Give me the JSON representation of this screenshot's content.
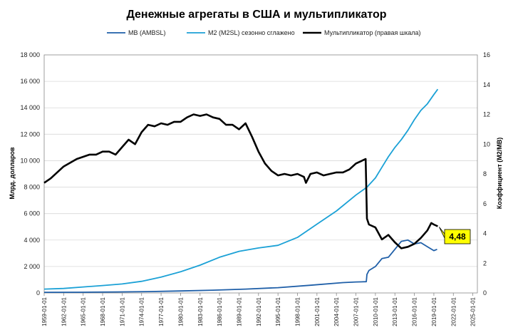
{
  "chart_data": {
    "type": "line",
    "title": "Денежные агрегаты в США и мультипликатор",
    "ylabel": "Млрд. долларов",
    "y2label": "Коэффициент (M2/MB)",
    "ylim": [
      0,
      18000
    ],
    "y2lim": [
      0,
      16
    ],
    "yticks": [
      "0",
      "2 000",
      "4 000",
      "6 000",
      "8 000",
      "10 000",
      "12 000",
      "14 000",
      "16 000",
      "18 000"
    ],
    "y2ticks": [
      "0",
      "2",
      "4",
      "6",
      "8",
      "10",
      "12",
      "14",
      "16"
    ],
    "xticks": [
      "1959-01-01",
      "1962-01-01",
      "1965-01-01",
      "1968-01-01",
      "1971-01-01",
      "1974-01-01",
      "1977-01-01",
      "1980-01-01",
      "1983-01-01",
      "1986-01-01",
      "1989-01-01",
      "1992-01-01",
      "1995-01-01",
      "1998-01-01",
      "2001-01-01",
      "2004-01-01",
      "2007-01-01",
      "2010-01-01",
      "2013-01-01",
      "2016-01-01",
      "2019-01-01",
      "2022-01-01",
      "2025-01-01"
    ],
    "xlim": [
      1959.0,
      2025.7
    ],
    "legend_position": "top",
    "grid": true,
    "series": [
      {
        "name": "MB (AMBSL)",
        "axis": "left",
        "color": "#1f5fa8",
        "points": [
          [
            1959,
            50
          ],
          [
            1965,
            55
          ],
          [
            1970,
            75
          ],
          [
            1975,
            105
          ],
          [
            1980,
            150
          ],
          [
            1985,
            210
          ],
          [
            1990,
            290
          ],
          [
            1995,
            400
          ],
          [
            2000,
            580
          ],
          [
            2005,
            780
          ],
          [
            2007,
            830
          ],
          [
            2008.6,
            850
          ],
          [
            2008.7,
            1400
          ],
          [
            2009,
            1700
          ],
          [
            2010,
            2000
          ],
          [
            2011,
            2600
          ],
          [
            2012,
            2700
          ],
          [
            2013,
            3300
          ],
          [
            2014,
            3900
          ],
          [
            2015,
            4000
          ],
          [
            2016,
            3700
          ],
          [
            2017,
            3800
          ],
          [
            2018,
            3500
          ],
          [
            2019,
            3200
          ],
          [
            2019.5,
            3300
          ]
        ]
      },
      {
        "name": "M2 (M2SL) сезонно сглажено",
        "axis": "left",
        "color": "#1ba1d6",
        "points": [
          [
            1959,
            290
          ],
          [
            1962,
            340
          ],
          [
            1965,
            450
          ],
          [
            1968,
            560
          ],
          [
            1971,
            680
          ],
          [
            1974,
            880
          ],
          [
            1977,
            1200
          ],
          [
            1980,
            1600
          ],
          [
            1983,
            2100
          ],
          [
            1986,
            2700
          ],
          [
            1989,
            3150
          ],
          [
            1992,
            3400
          ],
          [
            1995,
            3600
          ],
          [
            1998,
            4200
          ],
          [
            2001,
            5200
          ],
          [
            2004,
            6200
          ],
          [
            2007,
            7400
          ],
          [
            2008.7,
            8000
          ],
          [
            2010,
            8700
          ],
          [
            2011,
            9500
          ],
          [
            2012,
            10300
          ],
          [
            2013,
            11000
          ],
          [
            2014,
            11600
          ],
          [
            2015,
            12300
          ],
          [
            2016,
            13100
          ],
          [
            2017,
            13800
          ],
          [
            2018,
            14300
          ],
          [
            2019,
            15000
          ],
          [
            2019.6,
            15400
          ]
        ]
      },
      {
        "name": "Мультипликатор (правая шкала)",
        "axis": "right",
        "color": "#000000",
        "points": [
          [
            1959,
            7.4
          ],
          [
            1960,
            7.7
          ],
          [
            1962,
            8.5
          ],
          [
            1964,
            9.0
          ],
          [
            1966,
            9.3
          ],
          [
            1967,
            9.3
          ],
          [
            1968,
            9.5
          ],
          [
            1969,
            9.5
          ],
          [
            1970,
            9.3
          ],
          [
            1971,
            9.8
          ],
          [
            1972,
            10.3
          ],
          [
            1973,
            10.0
          ],
          [
            1974,
            10.8
          ],
          [
            1975,
            11.3
          ],
          [
            1976,
            11.2
          ],
          [
            1977,
            11.4
          ],
          [
            1978,
            11.3
          ],
          [
            1979,
            11.5
          ],
          [
            1980,
            11.5
          ],
          [
            1981,
            11.8
          ],
          [
            1982,
            12.0
          ],
          [
            1983,
            11.9
          ],
          [
            1984,
            12.0
          ],
          [
            1985,
            11.8
          ],
          [
            1986,
            11.7
          ],
          [
            1987,
            11.3
          ],
          [
            1988,
            11.3
          ],
          [
            1989,
            11.0
          ],
          [
            1990,
            11.4
          ],
          [
            1991,
            10.5
          ],
          [
            1992,
            9.5
          ],
          [
            1993,
            8.7
          ],
          [
            1994,
            8.2
          ],
          [
            1995,
            7.9
          ],
          [
            1996,
            8.0
          ],
          [
            1997,
            7.9
          ],
          [
            1998,
            8.0
          ],
          [
            1999,
            7.8
          ],
          [
            1999.3,
            7.4
          ],
          [
            2000,
            8.0
          ],
          [
            2001,
            8.1
          ],
          [
            2002,
            7.9
          ],
          [
            2003,
            8.0
          ],
          [
            2004,
            8.1
          ],
          [
            2005,
            8.1
          ],
          [
            2006,
            8.3
          ],
          [
            2007,
            8.7
          ],
          [
            2008.5,
            9.0
          ],
          [
            2008.7,
            5.0
          ],
          [
            2009,
            4.6
          ],
          [
            2010,
            4.4
          ],
          [
            2011,
            3.6
          ],
          [
            2012,
            3.9
          ],
          [
            2013,
            3.4
          ],
          [
            2014,
            3.0
          ],
          [
            2015,
            3.1
          ],
          [
            2016,
            3.3
          ],
          [
            2017,
            3.7
          ],
          [
            2018,
            4.2
          ],
          [
            2018.6,
            4.7
          ],
          [
            2019,
            4.6
          ],
          [
            2019.6,
            4.48
          ]
        ]
      }
    ],
    "annotation": {
      "label": "4,48",
      "x": 2019.6,
      "y": 4.48,
      "axis": "right"
    }
  }
}
